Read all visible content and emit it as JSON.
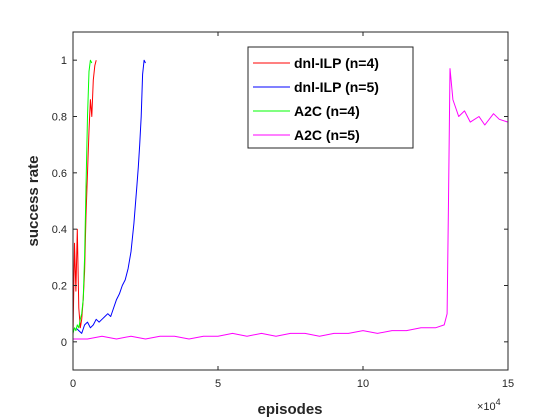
{
  "chart_data": {
    "type": "line",
    "xlabel": "episodes",
    "ylabel": "success rate",
    "x_exponent_label": "×10",
    "x_exponent_power": "4",
    "xlim": [
      0,
      150000
    ],
    "ylim": [
      -0.1,
      1.1
    ],
    "x_ticks": [
      0,
      50000,
      100000,
      150000
    ],
    "x_tick_labels": [
      "0",
      "5",
      "10",
      "15"
    ],
    "y_ticks": [
      0,
      0.2,
      0.4,
      0.6,
      0.8,
      1
    ],
    "y_tick_labels": [
      "0",
      "0.2",
      "0.4",
      "0.6",
      "0.8",
      "1"
    ],
    "grid": false,
    "legend_position": "top-right",
    "series": [
      {
        "name": "dnl-ILP (n=4)",
        "color": "#ff0000",
        "points": [
          [
            0,
            0.02
          ],
          [
            500,
            0.35
          ],
          [
            1000,
            0.18
          ],
          [
            1500,
            0.4
          ],
          [
            2000,
            0.12
          ],
          [
            2500,
            0.05
          ],
          [
            3000,
            0.08
          ],
          [
            3500,
            0.15
          ],
          [
            4000,
            0.25
          ],
          [
            4500,
            0.45
          ],
          [
            5000,
            0.6
          ],
          [
            5500,
            0.75
          ],
          [
            6000,
            0.86
          ],
          [
            6500,
            0.8
          ],
          [
            7000,
            0.93
          ],
          [
            7500,
            0.98
          ],
          [
            8000,
            1.0
          ]
        ]
      },
      {
        "name": "dnl-ILP (n=5)",
        "color": "#0000ff",
        "points": [
          [
            1000,
            0.05
          ],
          [
            2000,
            0.04
          ],
          [
            3000,
            0.03
          ],
          [
            4000,
            0.06
          ],
          [
            5000,
            0.07
          ],
          [
            6000,
            0.05
          ],
          [
            7000,
            0.06
          ],
          [
            8000,
            0.08
          ],
          [
            9000,
            0.07
          ],
          [
            10000,
            0.08
          ],
          [
            11000,
            0.09
          ],
          [
            12000,
            0.1
          ],
          [
            13000,
            0.09
          ],
          [
            14000,
            0.12
          ],
          [
            15000,
            0.15
          ],
          [
            16000,
            0.17
          ],
          [
            17000,
            0.2
          ],
          [
            18000,
            0.22
          ],
          [
            19000,
            0.26
          ],
          [
            20000,
            0.32
          ],
          [
            21000,
            0.42
          ],
          [
            22000,
            0.55
          ],
          [
            22500,
            0.62
          ],
          [
            23000,
            0.7
          ],
          [
            23500,
            0.8
          ],
          [
            24000,
            0.95
          ],
          [
            24500,
            1.0
          ],
          [
            25000,
            0.99
          ]
        ]
      },
      {
        "name": "A2C (n=4)",
        "color": "#00ff00",
        "points": [
          [
            0,
            0.03
          ],
          [
            500,
            0.05
          ],
          [
            1000,
            0.04
          ],
          [
            1500,
            0.06
          ],
          [
            2000,
            0.05
          ],
          [
            2500,
            0.08
          ],
          [
            3000,
            0.1
          ],
          [
            3500,
            0.15
          ],
          [
            4000,
            0.3
          ],
          [
            4500,
            0.55
          ],
          [
            5000,
            0.8
          ],
          [
            5500,
            0.96
          ],
          [
            6000,
            1.0
          ],
          [
            6500,
            0.99
          ]
        ]
      },
      {
        "name": "A2C (n=5)",
        "color": "#ff00ff",
        "points": [
          [
            0,
            0.01
          ],
          [
            5000,
            0.01
          ],
          [
            10000,
            0.02
          ],
          [
            15000,
            0.01
          ],
          [
            20000,
            0.02
          ],
          [
            25000,
            0.01
          ],
          [
            30000,
            0.02
          ],
          [
            35000,
            0.02
          ],
          [
            40000,
            0.01
          ],
          [
            45000,
            0.02
          ],
          [
            50000,
            0.02
          ],
          [
            55000,
            0.03
          ],
          [
            60000,
            0.02
          ],
          [
            65000,
            0.03
          ],
          [
            70000,
            0.02
          ],
          [
            75000,
            0.03
          ],
          [
            80000,
            0.03
          ],
          [
            85000,
            0.02
          ],
          [
            90000,
            0.03
          ],
          [
            95000,
            0.03
          ],
          [
            100000,
            0.04
          ],
          [
            105000,
            0.03
          ],
          [
            110000,
            0.04
          ],
          [
            115000,
            0.04
          ],
          [
            120000,
            0.05
          ],
          [
            125000,
            0.05
          ],
          [
            128000,
            0.06
          ],
          [
            129000,
            0.1
          ],
          [
            129500,
            0.5
          ],
          [
            130000,
            0.97
          ],
          [
            131000,
            0.86
          ],
          [
            133000,
            0.8
          ],
          [
            135000,
            0.82
          ],
          [
            137000,
            0.78
          ],
          [
            140000,
            0.8
          ],
          [
            142000,
            0.77
          ],
          [
            145000,
            0.81
          ],
          [
            147000,
            0.79
          ],
          [
            150000,
            0.78
          ]
        ]
      }
    ]
  }
}
